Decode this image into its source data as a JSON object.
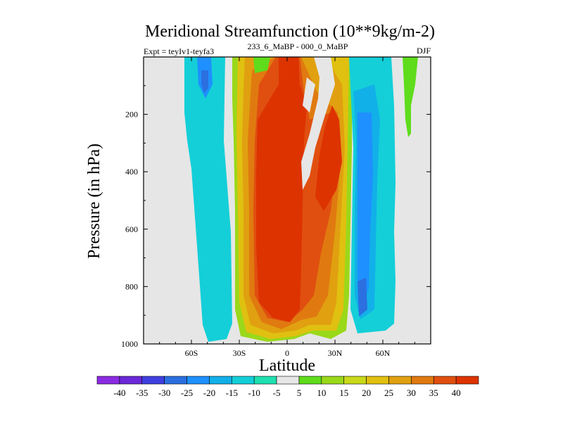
{
  "chart_data": {
    "type": "contour",
    "title": "Meridional Streamfunction (10**9kg/m-2)",
    "subtitle_left": "Expt = teyIv1-teyfa3",
    "subtitle_center": "233_6_MaBP - 000_0_MaBP",
    "season": "DJF",
    "xlabel": "Latitude",
    "ylabel": "Pressure (in hPa)",
    "xlim": [
      -90,
      90
    ],
    "ylim": [
      1000,
      0
    ],
    "x_ticks": [
      {
        "value": -60,
        "label": "60S"
      },
      {
        "value": -30,
        "label": "30S"
      },
      {
        "value": 0,
        "label": "0"
      },
      {
        "value": 30,
        "label": "30N"
      },
      {
        "value": 60,
        "label": "60N"
      }
    ],
    "y_ticks": [
      {
        "value": 200,
        "label": "200"
      },
      {
        "value": 400,
        "label": "400"
      },
      {
        "value": 600,
        "label": "600"
      },
      {
        "value": 800,
        "label": "800"
      },
      {
        "value": 1000,
        "label": "1000"
      }
    ],
    "colorbar_levels": [
      -40,
      -35,
      -30,
      -25,
      -20,
      -15,
      -10,
      -5,
      5,
      10,
      15,
      20,
      25,
      30,
      35,
      40
    ],
    "colorbar_colors": [
      "#8a2be2",
      "#6a28d8",
      "#3f3fe0",
      "#2b6fe0",
      "#1e90ff",
      "#12b0e8",
      "#14cfd8",
      "#20e0b0",
      "#e6e6e6",
      "#5fdc1c",
      "#9ad81a",
      "#c8d81a",
      "#e0c010",
      "#e0a010",
      "#e07a10",
      "#e04f10",
      "#dd3300"
    ],
    "missing_color": "#e6e6e6",
    "field_description": "Difference streamfunction: large positive core centred near the equator, negative cells poleward of 30S and 30N"
  },
  "colors": {
    "background": "#ffffff",
    "plot_background": "#e6e6e6",
    "axis": "#000000"
  }
}
